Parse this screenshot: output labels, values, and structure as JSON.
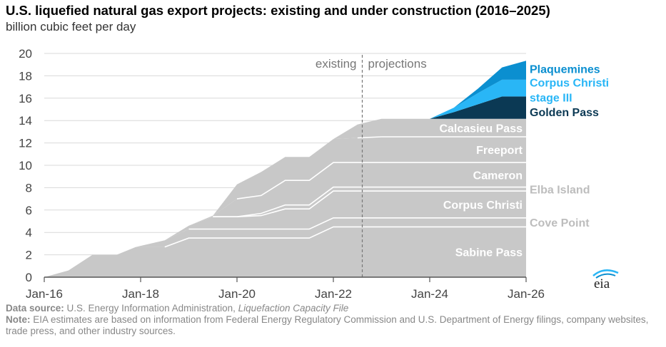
{
  "title": "U.S. liquefied natural gas export projects: existing and under construction (2016–2025)",
  "subtitle": "billion cubic feet per day",
  "chart_data": {
    "type": "area",
    "stacked": true,
    "x_start": "Jan-16",
    "x_end": "Jan-26",
    "xticks": [
      "Jan-16",
      "Jan-18",
      "Jan-20",
      "Jan-22",
      "Jan-24",
      "Jan-26"
    ],
    "ylim": [
      0,
      20
    ],
    "yticks": [
      0,
      2,
      4,
      6,
      8,
      10,
      12,
      14,
      16,
      18,
      20
    ],
    "divider_date": 2022.6,
    "divider_labels": [
      "existing",
      "projections"
    ],
    "x": [
      2016.0,
      2016.5,
      2017.0,
      2017.5,
      2017.9,
      2018.5,
      2019.0,
      2019.5,
      2020.0,
      2020.5,
      2021.0,
      2021.5,
      2022.0,
      2022.5,
      2023.0,
      2023.5,
      2024.0,
      2024.5,
      2025.0,
      2025.5,
      2026.0
    ],
    "series": [
      {
        "name": "Sabine Pass",
        "values": [
          0,
          0.6,
          2.0,
          2.0,
          2.7,
          2.7,
          3.5,
          3.5,
          3.5,
          3.5,
          3.5,
          3.5,
          4.5,
          4.5,
          4.5,
          4.5,
          4.5,
          4.5,
          4.5,
          4.5,
          4.5
        ]
      },
      {
        "name": "Cove Point",
        "values": [
          0,
          0,
          0,
          0,
          0,
          0.6,
          0.8,
          0.8,
          0.8,
          0.8,
          0.8,
          0.8,
          0.8,
          0.8,
          0.8,
          0.8,
          0.8,
          0.8,
          0.8,
          0.8,
          0.8
        ]
      },
      {
        "name": "Corpus Christi",
        "values": [
          0,
          0,
          0,
          0,
          0,
          0,
          0.3,
          1.1,
          1.1,
          1.2,
          1.8,
          1.8,
          2.4,
          2.4,
          2.4,
          2.4,
          2.4,
          2.4,
          2.4,
          2.4,
          2.4
        ]
      },
      {
        "name": "Elba Island",
        "values": [
          0,
          0,
          0,
          0,
          0,
          0,
          0,
          0,
          0,
          0.2,
          0.35,
          0.35,
          0.35,
          0.35,
          0.35,
          0.35,
          0.35,
          0.35,
          0.35,
          0.35,
          0.35
        ]
      },
      {
        "name": "Cameron",
        "values": [
          0,
          0,
          0,
          0,
          0,
          0,
          0,
          0.1,
          1.6,
          1.6,
          2.2,
          2.2,
          2.2,
          2.2,
          2.2,
          2.2,
          2.2,
          2.2,
          2.2,
          2.2,
          2.2
        ]
      },
      {
        "name": "Freeport",
        "values": [
          0,
          0,
          0,
          0,
          0,
          0,
          0,
          0,
          1.3,
          2.1,
          2.1,
          2.1,
          2.1,
          2.2,
          2.3,
          2.3,
          2.3,
          2.3,
          2.3,
          2.3,
          2.3
        ]
      },
      {
        "name": "Calcasieu Pass",
        "values": [
          0,
          0,
          0,
          0,
          0,
          0,
          0,
          0,
          0,
          0,
          0,
          0,
          0,
          1.2,
          1.6,
          1.6,
          1.6,
          1.6,
          1.6,
          1.6,
          1.6
        ]
      },
      {
        "name": "Golden Pass",
        "values": [
          0,
          0,
          0,
          0,
          0,
          0,
          0,
          0,
          0,
          0,
          0,
          0,
          0,
          0,
          0,
          0,
          0,
          0.6,
          1.3,
          2.0,
          2.0
        ]
      },
      {
        "name": "Corpus Christi stage III",
        "values": [
          0,
          0,
          0,
          0,
          0,
          0,
          0,
          0,
          0,
          0,
          0,
          0,
          0,
          0,
          0,
          0,
          0,
          0.4,
          1.0,
          1.5,
          1.5
        ]
      },
      {
        "name": "Plaquemines",
        "values": [
          0,
          0,
          0,
          0,
          0,
          0,
          0,
          0,
          0,
          0,
          0,
          0,
          0,
          0,
          0,
          0,
          0,
          0,
          0.4,
          1.1,
          1.7
        ]
      }
    ],
    "colors": {
      "existing": "#c8c8c8",
      "Golden Pass": "#0b3954",
      "Corpus Christi stage III": "#29b6f6",
      "Plaquemines": "#0b8fd0",
      "inner_label": "#ffffff",
      "outer_label": "#bdbdbd",
      "axis": "#555555",
      "grid": "#d9d9d9"
    },
    "labels": {
      "inside": [
        {
          "text": "Sabine Pass",
          "series": "Sabine Pass"
        },
        {
          "text": "Corpus Christi",
          "series": "Corpus Christi"
        },
        {
          "text": "Cameron",
          "series": "Cameron"
        },
        {
          "text": "Freeport",
          "series": "Freeport"
        },
        {
          "text": "Calcasieu Pass",
          "series": "Calcasieu Pass"
        }
      ],
      "outside_gray": [
        {
          "text": "Cove Point",
          "series": "Cove Point"
        },
        {
          "text": "Elba Island",
          "series": "Elba Island"
        }
      ],
      "outside_colored": [
        {
          "text": "Plaquemines",
          "series": "Plaquemines"
        },
        {
          "text": "Corpus Christi",
          "series": "Corpus Christi stage III"
        },
        {
          "text": "stage III",
          "series": "Corpus Christi stage III"
        },
        {
          "text": "Golden Pass",
          "series": "Golden Pass"
        }
      ]
    }
  },
  "footer": {
    "source_label": "Data source:",
    "source_text": "U.S. Energy Information Administration,",
    "source_italic": "Liquefaction Capacity File",
    "note_label": "Note:",
    "note_text": "EIA estimates are based on information from Federal Energy Regulatory Commission and U.S. Department of Energy filings, company websites, trade press, and other industry sources."
  },
  "logo_text": "eia"
}
